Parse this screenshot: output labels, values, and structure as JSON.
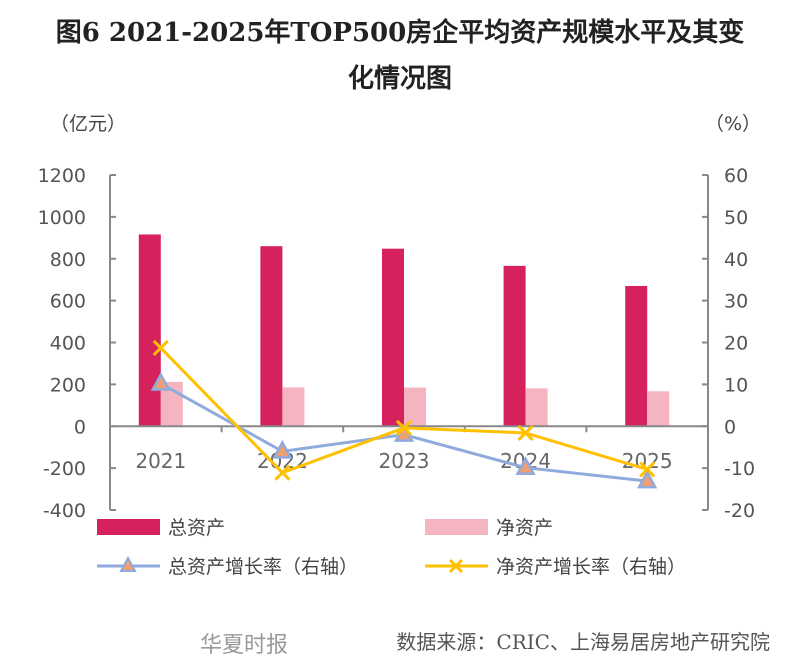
{
  "chart_data": {
    "type": "bar+line",
    "title": "图6 2021-2025年TOP500房企平均资产规模水平及其变化情况图",
    "title_lines": [
      "图6 2021-2025年TOP500房企平均资产规模水平及其变",
      "化情况图"
    ],
    "ylabel_left": "（亿元）",
    "ylabel_right": "（%）",
    "ylim_left": [
      -400,
      1200
    ],
    "ylim_right": [
      -20,
      60
    ],
    "yticks_left": [
      -400,
      -200,
      0,
      200,
      400,
      600,
      800,
      1000,
      1200
    ],
    "yticks_right": [
      -20,
      -10,
      0,
      10,
      20,
      30,
      40,
      50,
      60
    ],
    "categories": [
      "2021",
      "2022",
      "2023",
      "2024",
      "2025"
    ],
    "grid": false,
    "legend_placement": "bottom",
    "series": [
      {
        "name": "总资产",
        "type": "bar",
        "axis": "left",
        "color": "#D6225C",
        "values": [
          916,
          860,
          848,
          766,
          670
        ]
      },
      {
        "name": "净资产",
        "type": "bar",
        "axis": "left",
        "color": "#F4B5C1",
        "values": [
          212,
          186,
          185,
          181,
          167
        ]
      },
      {
        "name": "总资产增长率（右轴）",
        "type": "line",
        "axis": "right",
        "color": "#8FAADC",
        "marker": "triangle",
        "marker_fill": "#F0A070",
        "values": [
          10.2,
          -6.0,
          -2.0,
          -9.9,
          -13.1
        ]
      },
      {
        "name": "净资产增长率（右轴）",
        "type": "line",
        "axis": "right",
        "color": "#FFC000",
        "marker": "x",
        "values": [
          18.7,
          -11.1,
          -0.4,
          -1.6,
          -10.3
        ]
      }
    ]
  },
  "source": "数据来源：CRIC、上海易居房地产研究院",
  "watermark": "华夏时报"
}
